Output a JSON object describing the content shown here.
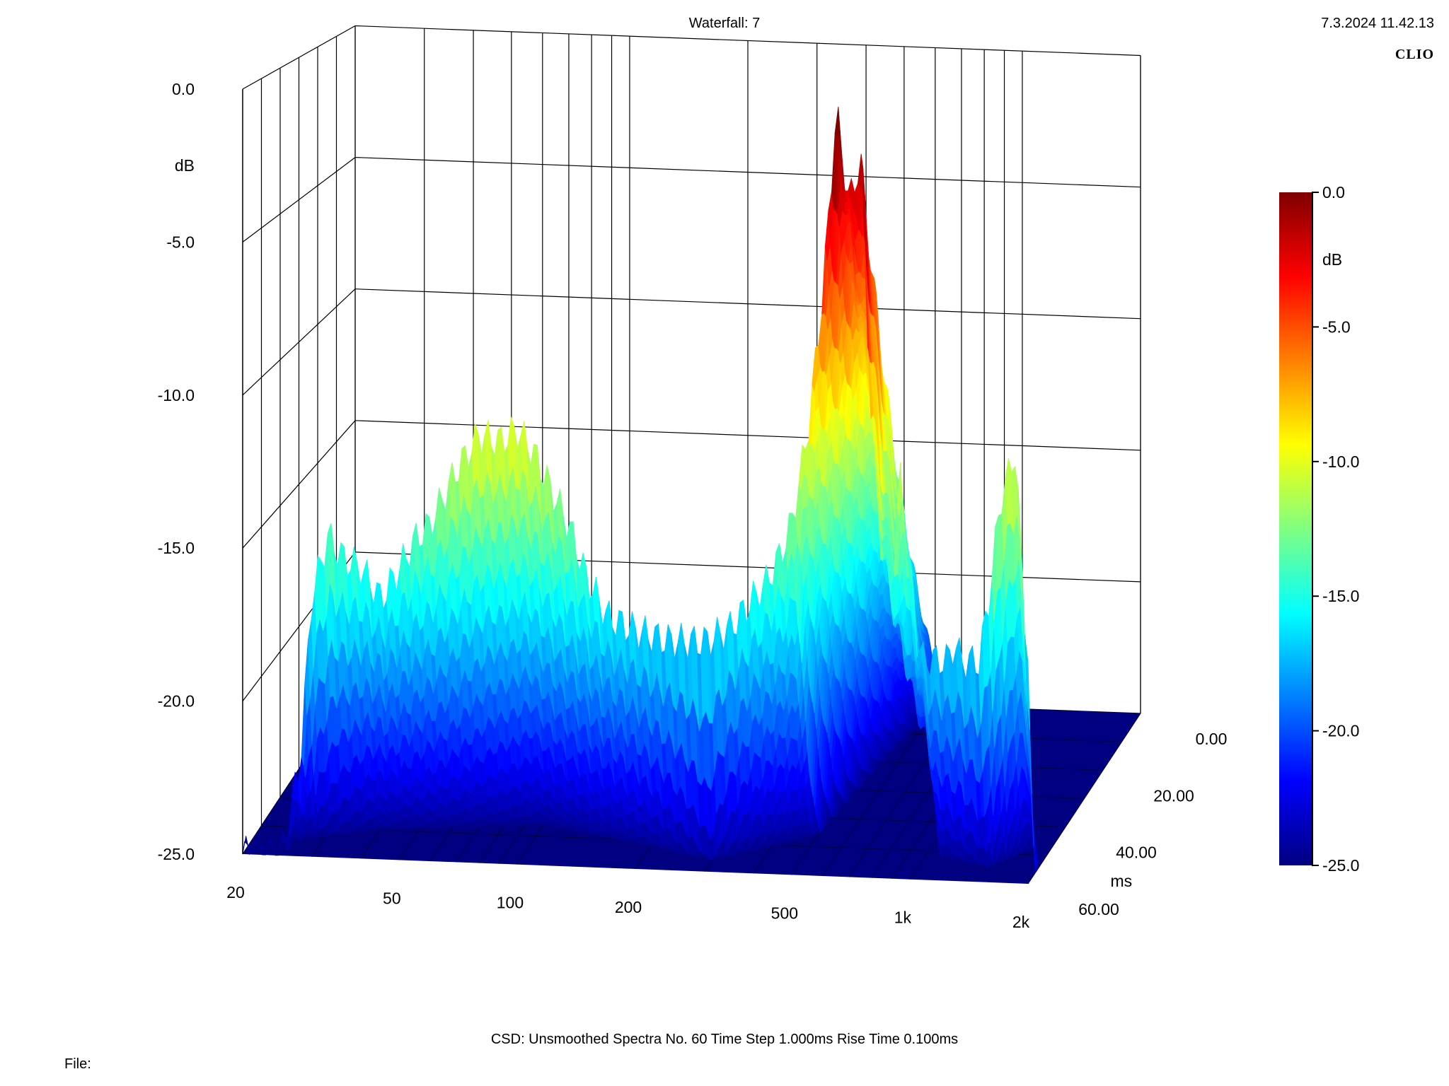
{
  "header": {
    "title": "Waterfall: 7",
    "timestamp": "7.3.2024 11.42.13",
    "brand": "CLIO"
  },
  "footer": {
    "info": "CSD:   Unsmoothed   Spectra No. 60   Time Step 1.000ms   Rise Time 0.100ms",
    "file_label": "File:"
  },
  "colors": {
    "scale": [
      "#000080",
      "#0000ff",
      "#0080ff",
      "#00ffff",
      "#80ff80",
      "#ffff00",
      "#ff8000",
      "#ff0000",
      "#800000"
    ],
    "grid": "#000000",
    "floor": "#000080"
  },
  "chart_data": {
    "type": "waterfall",
    "x_axis": {
      "scale": "log",
      "range": [
        20,
        2000
      ],
      "tick_values": [
        20,
        50,
        100,
        200,
        500,
        1000,
        2000
      ],
      "tick_labels": [
        "20",
        "50",
        "100",
        "200",
        "500",
        "1k",
        "2k"
      ]
    },
    "z_axis": {
      "unit_label": "dB",
      "range": [
        -25,
        0
      ],
      "tick_values": [
        0,
        -5,
        -10,
        -15,
        -20,
        -25
      ],
      "tick_labels": [
        "0.0",
        "-5.0",
        "-10.0",
        "-15.0",
        "-20.0",
        "-25.0"
      ]
    },
    "time_axis": {
      "unit_label": "ms",
      "range": [
        0,
        60
      ],
      "tick_values": [
        0,
        20,
        40,
        60
      ],
      "tick_labels": [
        "0.00",
        "20.00",
        "40.00",
        "60.00"
      ]
    },
    "colorbar": {
      "unit_label": "dB",
      "range": [
        -25,
        0
      ],
      "tick_values": [
        0,
        -5,
        -10,
        -15,
        -20,
        -25
      ],
      "tick_labels": [
        "0.0",
        "-5.0",
        "-10.0",
        "-15.0",
        "-20.0",
        "-25.0"
      ]
    },
    "spectra_count": 60,
    "time_step_ms": 1.0,
    "rise_time_ms": 0.1,
    "first_spectrum": {
      "freq_hz": [
        20,
        25,
        28,
        30,
        33,
        36,
        40,
        45,
        50,
        55,
        60,
        70,
        80,
        90,
        100,
        110,
        120,
        135,
        150,
        170,
        200,
        240,
        300,
        350,
        400,
        430,
        470,
        500,
        550,
        600,
        650,
        700,
        750,
        800,
        850,
        900,
        950,
        1000,
        1080,
        1150,
        1200,
        1250,
        1300,
        1350,
        1400,
        1500,
        1600,
        1700,
        1800,
        1850,
        1900,
        1950,
        2000
      ],
      "level_db": [
        -25,
        -25,
        -22,
        -16.5,
        -14.5,
        -15.2,
        -15.5,
        -16.5,
        -15.5,
        -14.5,
        -14,
        -12.2,
        -11,
        -11.2,
        -10.8,
        -11.5,
        -12.5,
        -13.8,
        -15.5,
        -16.8,
        -17.2,
        -17.5,
        -17.5,
        -17,
        -16,
        -15.5,
        -14.5,
        -13.5,
        -10.5,
        -6,
        0,
        -3,
        -1.5,
        -10.5,
        -14.5,
        -15.5,
        -11.5,
        -16.5,
        -17.8,
        -17.8,
        -17.8,
        -17.8,
        -17.2,
        -17.8,
        -17.8,
        -17.8,
        -15.5,
        -12.5,
        -11.5,
        -10.8,
        -13,
        -16,
        -17.5
      ]
    },
    "decay_ms": {
      "freq_hz": [
        20,
        40,
        100,
        200,
        300,
        500,
        550,
        600,
        700,
        800,
        900,
        1000,
        1100,
        1500,
        1800,
        1900,
        2000
      ],
      "value": [
        3,
        10,
        14,
        8,
        4,
        14,
        40,
        58,
        60,
        55,
        35,
        25,
        8,
        5,
        12,
        10,
        4
      ]
    }
  }
}
